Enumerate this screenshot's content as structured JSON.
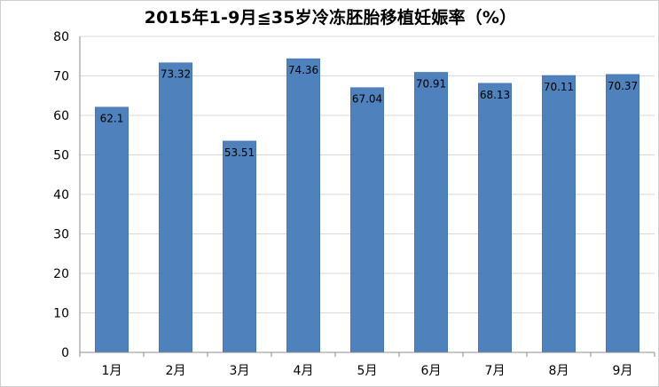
{
  "chart_data": {
    "type": "bar",
    "title": "2015年1-9月≦35岁冷冻胚胎移植妊娠率（%）",
    "xlabel": "",
    "ylabel": "",
    "categories": [
      "1月",
      "2月",
      "3月",
      "4月",
      "5月",
      "6月",
      "7月",
      "8月",
      "9月"
    ],
    "values": [
      62.1,
      73.32,
      53.51,
      74.36,
      67.04,
      70.91,
      68.13,
      70.11,
      70.37
    ],
    "data_labels": [
      "62.1",
      "73.32",
      "53.51",
      "74.36",
      "67.04",
      "70.91",
      "68.13",
      "70.11",
      "70.37"
    ],
    "ylim": [
      0,
      80
    ],
    "yticks": [
      0,
      10,
      20,
      30,
      40,
      50,
      60,
      70,
      80
    ],
    "grid": true,
    "legend": "none",
    "bar_color": "#4f81bd",
    "bar_border_color": "#3a6aa3",
    "grid_color": "#d9d9d9",
    "axis_color": "#8c8c8c"
  }
}
